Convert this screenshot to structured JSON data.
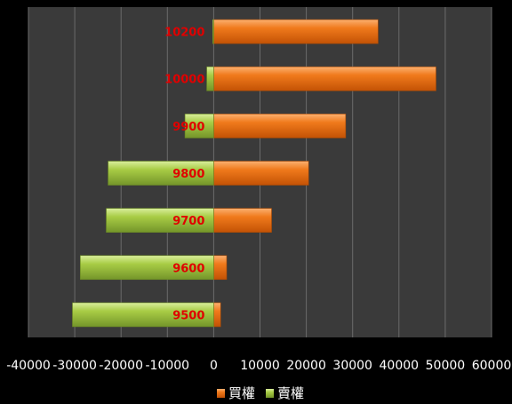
{
  "chart_data": {
    "type": "bar",
    "orientation": "horizontal",
    "categories": [
      "10200",
      "10000",
      "9900",
      "9800",
      "9700",
      "9600",
      "9500"
    ],
    "series": [
      {
        "name": "買權",
        "values": [
          35500,
          48000,
          28500,
          20500,
          12500,
          2800,
          1500
        ],
        "color": "#ed6c0e"
      },
      {
        "name": "賣權",
        "values": [
          -200,
          -1500,
          -6200,
          -22800,
          -23200,
          -28800,
          -30500
        ],
        "color": "#9dc33b"
      }
    ],
    "xlim": [
      -40000,
      60000
    ],
    "x_ticks": [
      "-40000",
      "-30000",
      "-20000",
      "-10000",
      "0",
      "10000",
      "20000",
      "30000",
      "40000",
      "50000",
      "60000"
    ],
    "grid": true,
    "legend_position": "bottom",
    "title": "",
    "xlabel": "",
    "ylabel": ""
  }
}
